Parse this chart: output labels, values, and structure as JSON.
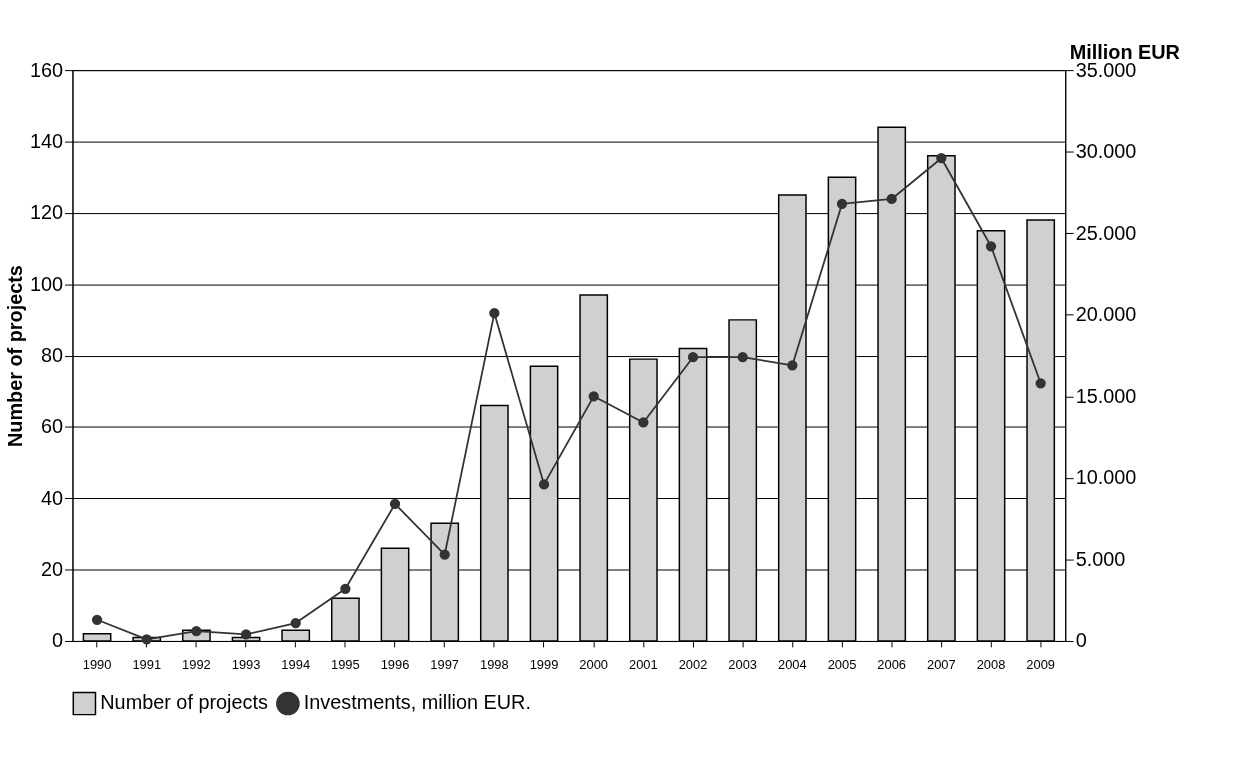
{
  "chart_data": {
    "type": "bar",
    "ylabel": "Number of projects",
    "y2label": "Million EUR",
    "categories": [
      "1990",
      "1991",
      "1992",
      "1993",
      "1994",
      "1995",
      "1996",
      "1997",
      "1998",
      "1999",
      "2000",
      "2001",
      "2002",
      "2003",
      "2004",
      "2005",
      "2006",
      "2007",
      "2008",
      "2009"
    ],
    "series": [
      {
        "name": "Number of projects",
        "color": "#d0d0d0",
        "values": [
          2,
          1,
          3,
          1,
          3,
          12,
          26,
          33,
          66,
          77,
          97,
          79,
          82,
          90,
          125,
          130,
          144,
          136,
          115,
          118
        ]
      },
      {
        "name": "Investments, million EUR.",
        "type": "line",
        "axis": "y2",
        "color": "#333333",
        "marker": "circle",
        "values": [
          1300,
          100,
          600,
          400,
          1100,
          3200,
          8400,
          5300,
          20100,
          9600,
          15000,
          13400,
          17400,
          17400,
          16900,
          26800,
          27100,
          29600,
          24200,
          15800
        ]
      }
    ],
    "ylim": [
      0,
      160
    ],
    "yticks": [
      0,
      20,
      40,
      60,
      80,
      100,
      120,
      140,
      160
    ],
    "y2lim": [
      0,
      35000
    ],
    "y2ticks": [
      0,
      {
        "value": 5000,
        "label": "5.000"
      },
      {
        "value": 10000,
        "label": "10.000"
      },
      {
        "value": 15000,
        "label": "15.000"
      },
      {
        "value": 20000,
        "label": "20.000"
      },
      {
        "value": 25000,
        "label": "25.000"
      },
      {
        "value": 30000,
        "label": "30.000"
      },
      {
        "value": 35000,
        "label": "35.000"
      }
    ],
    "grid": "y",
    "legend": "bottom"
  }
}
